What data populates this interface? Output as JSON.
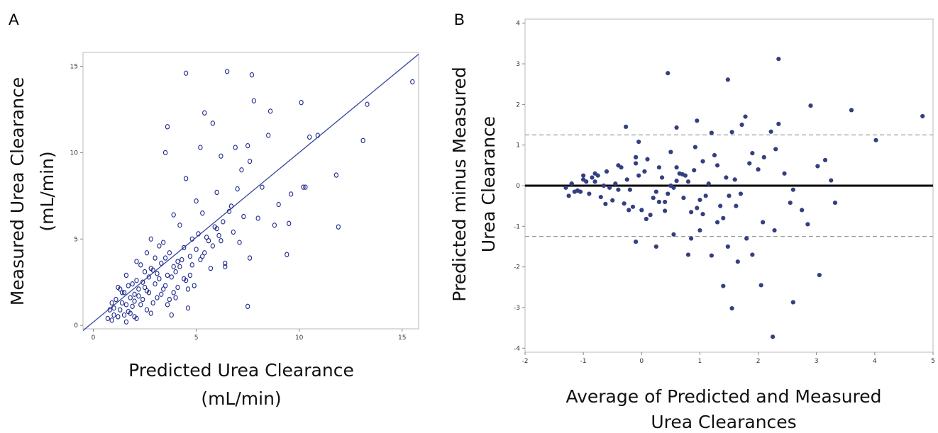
{
  "chart_data": [
    {
      "panel": "A",
      "type": "scatter",
      "xlabel": [
        "Predicted Urea Clearance",
        "(mL/min)"
      ],
      "ylabel": [
        "Measured Urea Clearance",
        "(mL/min)"
      ],
      "xlim": [
        -0.5,
        15.8
      ],
      "ylim": [
        -0.2,
        15.8
      ],
      "xticks": [
        "0",
        "5",
        "10",
        "15"
      ],
      "yticks": [
        "0",
        "5",
        "10",
        "15"
      ],
      "marker": "open-circle",
      "color": "#1f2a8c",
      "fit_line": {
        "x": [
          -0.5,
          15.8
        ],
        "y": [
          -0.3,
          15.7
        ]
      },
      "points": {
        "x": [
          4.5,
          6.5,
          7.7,
          7.8,
          8.6,
          10.1,
          5.4,
          3.6,
          5.8,
          6.9,
          7.5,
          8.5,
          10.3,
          10.5,
          10.9,
          13.3,
          13.1,
          15.5,
          3.5,
          4.5,
          5.2,
          6.2,
          7.2,
          7.6,
          8.2,
          9.0,
          9.5,
          9.6,
          10.2,
          11.8,
          11.9,
          9.4,
          8.8,
          6.4,
          7.5,
          4.6,
          3.8,
          5.0,
          5.3,
          6.0,
          6.7,
          7.0,
          8.0,
          5.1,
          4.2,
          3.9,
          2.8,
          3.2,
          2.6,
          2.1,
          1.6,
          1.2,
          0.9,
          0.7,
          1.4,
          1.9,
          2.3,
          2.5,
          3.0,
          3.4,
          3.7,
          4.1,
          4.4,
          4.8,
          5.5,
          5.9,
          6.3,
          6.8,
          7.3,
          1.0,
          1.3,
          1.6,
          1.8,
          2.0,
          2.2,
          2.4,
          2.7,
          2.9,
          3.1,
          3.3,
          3.6,
          3.9,
          4.3,
          4.7,
          5.0,
          5.6,
          6.1,
          1.1,
          1.5,
          1.7,
          2.1,
          2.5,
          2.8,
          3.2,
          3.5,
          4.0,
          4.5,
          5.2,
          5.8,
          0.8,
          1.2,
          1.4,
          1.9,
          2.2,
          2.6,
          3.0,
          3.4,
          3.8,
          4.2,
          4.9,
          5.4,
          6.0,
          6.6,
          7.1,
          1.0,
          1.3,
          1.7,
          2.0,
          2.3,
          2.7,
          3.1,
          3.5,
          3.9,
          4.4,
          4.8,
          1.5,
          2.4,
          2.9,
          3.3,
          4.6,
          5.7,
          6.4,
          1.8,
          2.1,
          2.6,
          3.7,
          4.1,
          0.9,
          1.6,
          2.0,
          2.8,
          3.6,
          4.0,
          4.7,
          5.3,
          6.2,
          7.6
        ],
        "y": [
          14.6,
          14.7,
          14.5,
          13.0,
          12.4,
          12.9,
          12.3,
          11.5,
          11.7,
          10.3,
          10.4,
          11.0,
          8.0,
          10.9,
          11.0,
          12.8,
          10.7,
          14.1,
          10.0,
          8.5,
          10.3,
          9.8,
          9.0,
          9.5,
          8.0,
          7.0,
          5.9,
          7.6,
          8.0,
          8.7,
          5.7,
          4.1,
          5.8,
          3.6,
          1.1,
          1.0,
          0.6,
          7.2,
          6.5,
          7.7,
          6.9,
          7.9,
          6.2,
          5.3,
          5.8,
          6.4,
          5.0,
          4.6,
          4.2,
          3.7,
          2.9,
          2.2,
          1.3,
          0.4,
          1.9,
          2.4,
          3.5,
          3.1,
          3.9,
          4.8,
          4.2,
          3.7,
          4.5,
          5.0,
          5.1,
          5.7,
          6.0,
          5.4,
          6.3,
          0.6,
          0.9,
          1.2,
          1.6,
          1.8,
          2.1,
          2.5,
          2.8,
          3.2,
          3.0,
          3.6,
          2.9,
          3.4,
          3.8,
          4.0,
          4.4,
          4.9,
          5.2,
          1.5,
          1.9,
          2.3,
          2.6,
          2.2,
          3.3,
          2.7,
          3.9,
          3.1,
          2.6,
          3.8,
          4.6,
          0.9,
          0.5,
          1.3,
          1.1,
          1.7,
          2.0,
          2.4,
          2.1,
          2.8,
          3.4,
          2.3,
          4.2,
          5.6,
          6.6,
          4.8,
          1.0,
          2.1,
          0.8,
          1.4,
          1.2,
          1.9,
          1.6,
          2.3,
          1.9,
          2.7,
          3.5,
          0.6,
          1.5,
          1.3,
          1.8,
          2.1,
          3.3,
          3.4,
          0.7,
          0.4,
          0.9,
          1.5,
          2.2,
          0.3,
          0.2,
          0.5,
          0.7,
          1.2,
          1.6,
          2.9,
          4.0,
          4.9,
          3.9
        ]
      }
    },
    {
      "panel": "B",
      "type": "scatter",
      "xlabel": [
        "Average of Predicted and Measured",
        "Urea Clearances"
      ],
      "ylabel": [
        "Predicted minus Measured",
        "Urea Clearance"
      ],
      "xlim": [
        -2,
        5
      ],
      "ylim": [
        -4.1,
        4.1
      ],
      "xticks": [
        "-2",
        "-1",
        "0",
        "1",
        "2",
        "3",
        "4",
        "5"
      ],
      "yticks": [
        "-4",
        "-3",
        "-2",
        "-1",
        "0",
        "1",
        "2",
        "3",
        "4"
      ],
      "marker": "filled-circle",
      "color": "#343f80",
      "mean_line": 0,
      "limits_of_agreement": [
        1.25,
        -1.25
      ],
      "points": {
        "x": [
          2.35,
          0.45,
          1.48,
          2.9,
          3.6,
          4.82,
          4.02,
          1.78,
          -0.27,
          -0.05,
          0.6,
          0.95,
          1.2,
          1.55,
          1.72,
          2.22,
          2.35,
          1.65,
          1.9,
          1.55,
          2.05,
          2.25,
          3.05,
          3.15,
          3.25,
          3.32,
          2.85,
          2.6,
          1.4,
          1.8,
          0.8,
          0.25,
          -0.1,
          0.55,
          1.0,
          0.85,
          2.75,
          3.02,
          2.28,
          2.08,
          1.48,
          1.2,
          1.62,
          1.05,
          0.92,
          0.5,
          0.72,
          0.08,
          -0.22,
          -0.62,
          -0.1,
          0.3,
          0.65,
          1.3,
          1.9,
          2.1,
          2.45,
          2.55,
          1.1,
          0.4,
          -0.4,
          -0.8,
          -1.0,
          -1.2,
          -1.3,
          -1.1,
          -0.9,
          -0.7,
          -0.5,
          -0.3,
          -0.15,
          0.0,
          0.15,
          0.3,
          0.45,
          0.6,
          0.75,
          0.9,
          1.05,
          1.25,
          1.45,
          1.7,
          2.0,
          2.3,
          2.6,
          -1.25,
          -1.05,
          -0.85,
          -0.6,
          -0.35,
          -0.1,
          0.1,
          0.35,
          0.55,
          0.8,
          1.0,
          1.35,
          1.6,
          1.85,
          -1.15,
          -0.95,
          -0.75,
          -0.55,
          -0.25,
          0.05,
          0.2,
          0.5,
          0.7,
          1.15,
          1.4,
          -1.2,
          -1.0,
          -0.8,
          -0.45,
          -0.2,
          0.25,
          0.6,
          0.95,
          1.3,
          -0.65,
          -0.4,
          -0.05,
          0.4,
          0.85,
          1.5
        ],
        "y": [
          3.12,
          2.77,
          2.61,
          1.97,
          1.86,
          1.71,
          1.12,
          1.7,
          1.45,
          1.08,
          1.43,
          1.6,
          1.3,
          1.32,
          1.5,
          1.33,
          1.52,
          -1.87,
          -1.7,
          -3.02,
          -2.45,
          -3.72,
          -2.2,
          0.63,
          0.13,
          -0.42,
          -0.95,
          -2.87,
          -2.47,
          -1.3,
          -1.7,
          -1.5,
          -1.38,
          -1.2,
          -1.1,
          -1.3,
          -0.6,
          0.48,
          -1.1,
          -0.9,
          -1.5,
          -1.72,
          -0.5,
          -0.7,
          0.95,
          0.83,
          -0.3,
          -0.82,
          -0.6,
          -0.45,
          0.7,
          0.45,
          0.3,
          0.5,
          0.8,
          0.7,
          0.3,
          -0.42,
          -0.25,
          -0.62,
          0.5,
          0.3,
          0.15,
          0.05,
          -0.05,
          -0.12,
          -0.2,
          -0.28,
          -0.36,
          -0.44,
          -0.52,
          -0.6,
          -0.72,
          -0.4,
          -0.2,
          0.12,
          0.25,
          0.38,
          0.6,
          0.75,
          0.2,
          -0.2,
          0.4,
          0.9,
          -0.1,
          -0.25,
          -0.15,
          0.2,
          0.35,
          0.45,
          0.55,
          0.65,
          0.2,
          -0.05,
          0.1,
          -0.35,
          -0.5,
          0.15,
          0.55,
          -0.15,
          0.1,
          0.25,
          -0.05,
          0.15,
          0.35,
          -0.3,
          0.0,
          0.28,
          0.05,
          -0.8,
          0.05,
          0.25,
          0.1,
          0.05,
          -0.1,
          -0.15,
          0.45,
          -0.55,
          -0.9,
          0.0,
          -0.1,
          0.25,
          -0.4,
          -0.65,
          -0.25
        ]
      }
    }
  ],
  "panel_labels": [
    "A",
    "B"
  ]
}
